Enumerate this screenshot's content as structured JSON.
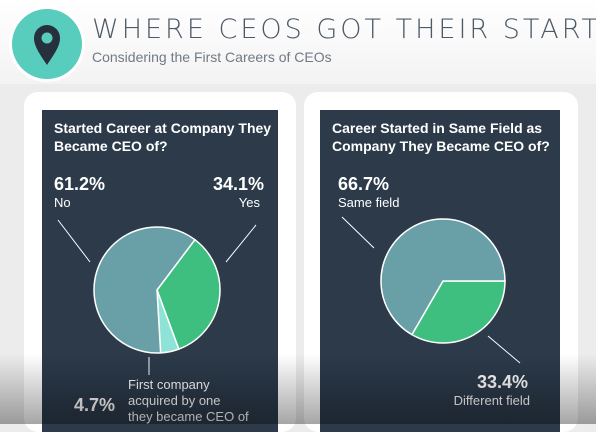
{
  "header": {
    "title": "WHERE CEOS GOT THEIR STARTS",
    "subtitle": "Considering the First Careers of CEOs",
    "logo_icon": "map-pin-icon"
  },
  "colors": {
    "teal": "#69a0a8",
    "green": "#3fbf7f",
    "light_teal": "#8fe3d6",
    "panel": "#2c3a4a"
  },
  "chart_data": [
    {
      "type": "pie",
      "title": "Started Career at Company They Became CEO of?",
      "slices": [
        {
          "value": 61.2,
          "label": "No",
          "pct_text": "61.2%",
          "color": "#69a0a8"
        },
        {
          "value": 34.1,
          "label": "Yes",
          "pct_text": "34.1%",
          "color": "#3fbf7f"
        },
        {
          "value": 4.7,
          "label": "First company acquired by one they became CEO of",
          "pct_text": "4.7%",
          "color": "#8fe3d6"
        }
      ]
    },
    {
      "type": "pie",
      "title": "Career Started in Same Field as Company They Became CEO of?",
      "slices": [
        {
          "value": 66.7,
          "label": "Same field",
          "pct_text": "66.7%",
          "color": "#69a0a8"
        },
        {
          "value": 33.4,
          "label": "Different field",
          "pct_text": "33.4%",
          "color": "#3fbf7f"
        }
      ]
    }
  ]
}
